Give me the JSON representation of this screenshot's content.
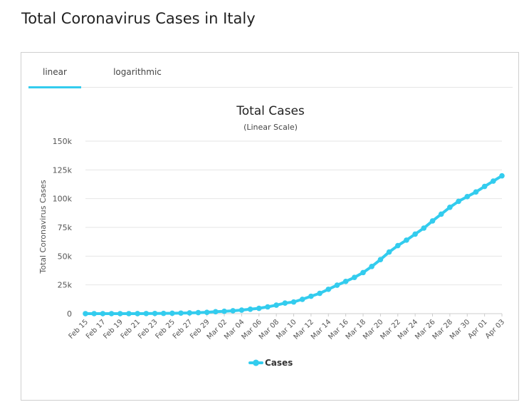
{
  "page": {
    "title": "Total Coronavirus Cases in Italy"
  },
  "tabs": [
    {
      "label": "linear",
      "active": true
    },
    {
      "label": "logarithmic",
      "active": false
    }
  ],
  "colors": {
    "series": "#33ccee",
    "active_tab": "#33ccee",
    "grid": "#e6e6e6"
  },
  "chart_data": {
    "type": "line",
    "title": "Total Cases",
    "subtitle": "(Linear Scale)",
    "ylabel": "Total Coronavirus Cases",
    "xlabel": "",
    "ylim": [
      0,
      150000
    ],
    "y_ticks": [
      {
        "value": 0,
        "label": "0"
      },
      {
        "value": 25000,
        "label": "25k"
      },
      {
        "value": 50000,
        "label": "50k"
      },
      {
        "value": 75000,
        "label": "75k"
      },
      {
        "value": 100000,
        "label": "100k"
      },
      {
        "value": 125000,
        "label": "125k"
      },
      {
        "value": 150000,
        "label": "150k"
      }
    ],
    "x_tick_labels": [
      "Feb 15",
      "Feb 17",
      "Feb 19",
      "Feb 21",
      "Feb 23",
      "Feb 25",
      "Feb 27",
      "Feb 29",
      "Mar 02",
      "Mar 04",
      "Mar 06",
      "Mar 08",
      "Mar 10",
      "Mar 12",
      "Mar 14",
      "Mar 16",
      "Mar 18",
      "Mar 20",
      "Mar 22",
      "Mar 24",
      "Mar 26",
      "Mar 28",
      "Mar 30",
      "Apr 01",
      "Apr 03"
    ],
    "x": [
      "Feb 15",
      "Feb 16",
      "Feb 17",
      "Feb 18",
      "Feb 19",
      "Feb 20",
      "Feb 21",
      "Feb 22",
      "Feb 23",
      "Feb 24",
      "Feb 25",
      "Feb 26",
      "Feb 27",
      "Feb 28",
      "Feb 29",
      "Mar 01",
      "Mar 02",
      "Mar 03",
      "Mar 04",
      "Mar 05",
      "Mar 06",
      "Mar 07",
      "Mar 08",
      "Mar 09",
      "Mar 10",
      "Mar 11",
      "Mar 12",
      "Mar 13",
      "Mar 14",
      "Mar 15",
      "Mar 16",
      "Mar 17",
      "Mar 18",
      "Mar 19",
      "Mar 20",
      "Mar 21",
      "Mar 22",
      "Mar 23",
      "Mar 24",
      "Mar 25",
      "Mar 26",
      "Mar 27",
      "Mar 28",
      "Mar 29",
      "Mar 30",
      "Mar 31",
      "Apr 01",
      "Apr 02",
      "Apr 03"
    ],
    "series": [
      {
        "name": "Cases",
        "values": [
          3,
          3,
          3,
          3,
          3,
          3,
          20,
          79,
          157,
          229,
          323,
          470,
          655,
          889,
          1128,
          1694,
          2036,
          2502,
          3089,
          3858,
          4636,
          5883,
          7375,
          9172,
          10149,
          12462,
          15113,
          17660,
          21157,
          24747,
          27980,
          31506,
          35713,
          41035,
          47021,
          53578,
          59138,
          63927,
          69176,
          74386,
          80589,
          86498,
          92472,
          97689,
          101739,
          105792,
          110574,
          115242,
          119827
        ]
      }
    ],
    "legend": {
      "position": "bottom-center",
      "label": "Cases"
    }
  }
}
